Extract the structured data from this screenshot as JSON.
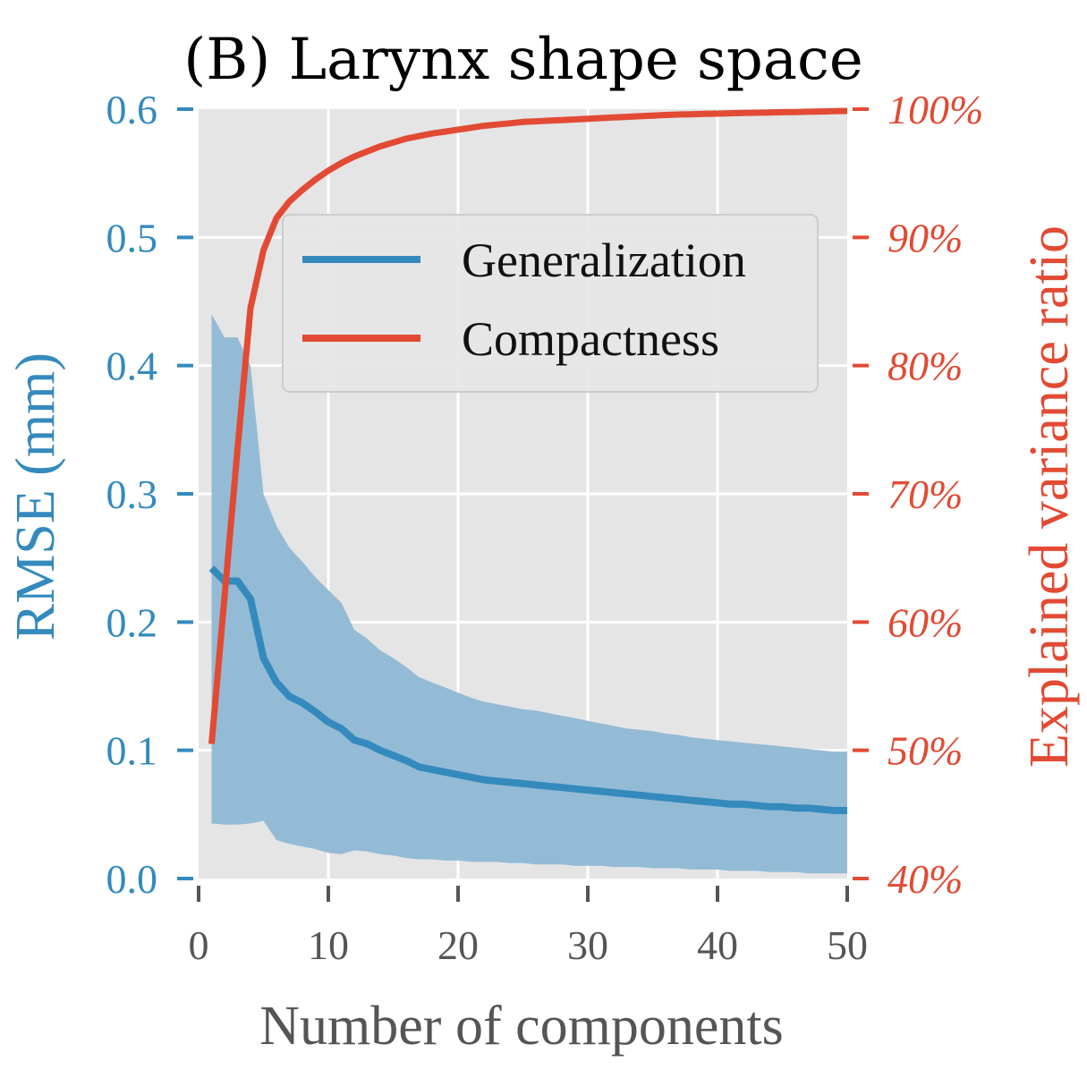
{
  "chart_data": {
    "type": "line",
    "title": "(B) Larynx shape space",
    "xlabel": "Number of components",
    "ylabel_left": "RMSE (mm)",
    "ylabel_right": "Explained variance ratio",
    "xlim": [
      0,
      50
    ],
    "ylim_left": [
      0.0,
      0.6
    ],
    "ylim_right": [
      40,
      100
    ],
    "x_ticks": [
      "0",
      "10",
      "20",
      "30",
      "40",
      "50"
    ],
    "y_left_ticks": [
      "0.0",
      "0.1",
      "0.2",
      "0.3",
      "0.4",
      "0.5",
      "0.6"
    ],
    "y_right_ticks": [
      "40%",
      "50%",
      "60%",
      "70%",
      "80%",
      "90%",
      "100%"
    ],
    "grid": true,
    "legend": {
      "position": "upper-right",
      "entries": [
        "Generalization",
        "Compactness"
      ]
    },
    "colors": {
      "generalization": "#348abd",
      "band": "#8fb8d4",
      "compactness": "#e24a33",
      "plot_bg": "#e5e5e5",
      "grid": "#ffffff",
      "xtick": "#555555"
    },
    "series": [
      {
        "name": "Generalization",
        "axis": "left",
        "x": [
          1,
          2,
          3,
          4,
          5,
          6,
          7,
          8,
          9,
          10,
          11,
          12,
          13,
          14,
          15,
          16,
          17,
          18,
          19,
          20,
          21,
          22,
          23,
          24,
          25,
          26,
          27,
          28,
          29,
          30,
          31,
          32,
          33,
          34,
          35,
          36,
          37,
          38,
          39,
          40,
          41,
          42,
          43,
          44,
          45,
          46,
          47,
          48,
          49,
          50
        ],
        "values": [
          0.242,
          0.232,
          0.232,
          0.218,
          0.172,
          0.153,
          0.142,
          0.137,
          0.13,
          0.122,
          0.117,
          0.108,
          0.105,
          0.1,
          0.096,
          0.092,
          0.087,
          0.085,
          0.083,
          0.081,
          0.079,
          0.077,
          0.076,
          0.075,
          0.074,
          0.073,
          0.072,
          0.071,
          0.07,
          0.069,
          0.068,
          0.067,
          0.066,
          0.065,
          0.064,
          0.063,
          0.062,
          0.061,
          0.06,
          0.059,
          0.058,
          0.058,
          0.057,
          0.056,
          0.056,
          0.055,
          0.055,
          0.054,
          0.053,
          0.053
        ],
        "lower": [
          0.043,
          0.042,
          0.042,
          0.043,
          0.045,
          0.03,
          0.027,
          0.025,
          0.023,
          0.02,
          0.019,
          0.022,
          0.021,
          0.019,
          0.018,
          0.016,
          0.015,
          0.015,
          0.014,
          0.014,
          0.013,
          0.013,
          0.013,
          0.012,
          0.012,
          0.011,
          0.011,
          0.011,
          0.01,
          0.01,
          0.01,
          0.009,
          0.009,
          0.009,
          0.008,
          0.008,
          0.008,
          0.007,
          0.007,
          0.007,
          0.006,
          0.006,
          0.006,
          0.005,
          0.005,
          0.005,
          0.004,
          0.004,
          0.004,
          0.004
        ],
        "upper": [
          0.44,
          0.422,
          0.422,
          0.4,
          0.3,
          0.275,
          0.258,
          0.247,
          0.235,
          0.225,
          0.215,
          0.194,
          0.187,
          0.178,
          0.172,
          0.165,
          0.157,
          0.153,
          0.149,
          0.145,
          0.141,
          0.138,
          0.136,
          0.134,
          0.132,
          0.131,
          0.129,
          0.127,
          0.125,
          0.123,
          0.121,
          0.119,
          0.117,
          0.116,
          0.115,
          0.113,
          0.112,
          0.11,
          0.109,
          0.108,
          0.107,
          0.106,
          0.105,
          0.104,
          0.103,
          0.102,
          0.101,
          0.1,
          0.099,
          0.099
        ]
      },
      {
        "name": "Compactness",
        "axis": "right",
        "x": [
          1,
          2,
          3,
          4,
          5,
          6,
          7,
          8,
          9,
          10,
          11,
          12,
          13,
          14,
          15,
          16,
          17,
          18,
          19,
          20,
          21,
          22,
          23,
          24,
          25,
          26,
          27,
          28,
          29,
          30,
          31,
          32,
          33,
          34,
          35,
          36,
          37,
          38,
          39,
          40,
          41,
          42,
          43,
          44,
          45,
          46,
          47,
          48,
          49,
          50
        ],
        "values": [
          50.5,
          62.0,
          73.5,
          84.5,
          89.0,
          91.5,
          92.8,
          93.7,
          94.5,
          95.2,
          95.8,
          96.3,
          96.7,
          97.1,
          97.4,
          97.7,
          97.9,
          98.1,
          98.25,
          98.4,
          98.55,
          98.7,
          98.8,
          98.9,
          99.0,
          99.05,
          99.1,
          99.15,
          99.2,
          99.25,
          99.3,
          99.35,
          99.4,
          99.45,
          99.5,
          99.55,
          99.58,
          99.6,
          99.63,
          99.65,
          99.68,
          99.7,
          99.72,
          99.74,
          99.76,
          99.78,
          99.8,
          99.82,
          99.84,
          99.86
        ]
      }
    ]
  }
}
